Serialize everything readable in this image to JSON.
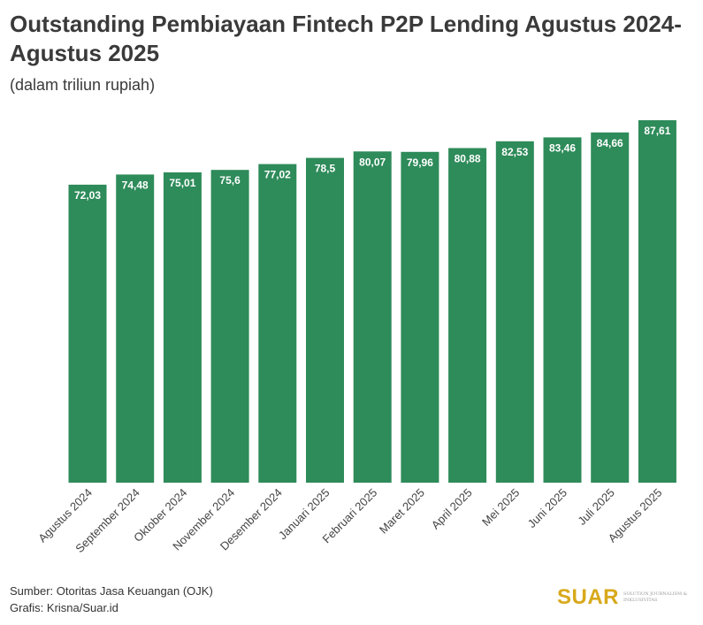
{
  "chart_data": {
    "type": "bar",
    "title": "Outstanding Pembiayaan Fintech P2P Lending Agustus 2024-Agustus 2025",
    "subtitle": "(dalam triliun rupiah)",
    "categories": [
      "Agustus 2024",
      "September 2024",
      "Oktober 2024",
      "November 2024",
      "Desember 2024",
      "Januari 2025",
      "Februari 2025",
      "Maret 2025",
      "April 2025",
      "Mei 2025",
      "Juni 2025",
      "Juli 2025",
      "Agustus 2025"
    ],
    "values": [
      72.03,
      74.48,
      75.01,
      75.6,
      77.02,
      78.5,
      80.07,
      79.96,
      80.88,
      82.53,
      83.46,
      84.66,
      87.61
    ],
    "value_labels": [
      "72,03",
      "74,48",
      "75,01",
      "75,6",
      "77,02",
      "78,5",
      "80,07",
      "79,96",
      "80,88",
      "82,53",
      "83,46",
      "84,66",
      "87,61"
    ],
    "ylim": [
      0,
      87.61
    ],
    "grid": false,
    "colors": {
      "bar": "#2e8b5a",
      "label": "#ffffff"
    }
  },
  "footer": {
    "source": "Sumber: Otoritas Jasa Keuangan (OJK)",
    "credit": "Grafis: Krisna/Suar.id"
  },
  "logo": {
    "mark": "SUAR",
    "tagline": "SOLUTION JOURNALISM & INKLUSIVITAS"
  }
}
